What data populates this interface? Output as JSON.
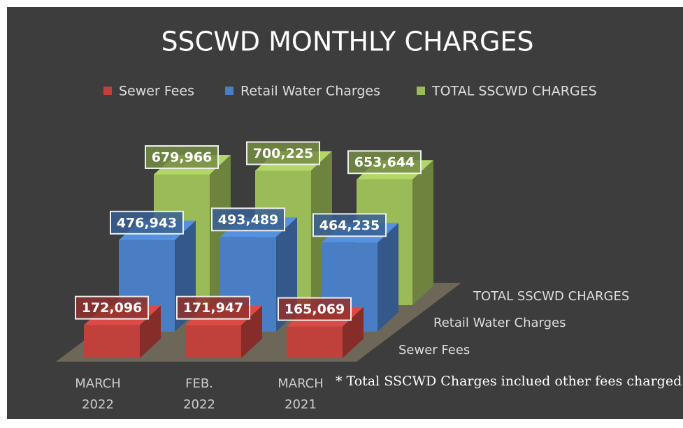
{
  "chart_data": {
    "type": "bar3d",
    "title": "SSCWD MONTHLY CHARGES",
    "categories": [
      "MARCH 2022",
      "FEB. 2022",
      "MARCH 2021"
    ],
    "series": [
      {
        "name": "Sewer Fees",
        "color": "#c0403c",
        "values": [
          172096,
          171947,
          165069
        ],
        "value_labels": [
          "172,096",
          "171,947",
          "165,069"
        ]
      },
      {
        "name": "Retail Water Charges",
        "color": "#4a7ec4",
        "values": [
          476943,
          493489,
          464235
        ],
        "value_labels": [
          "476,943",
          "493,489",
          "464,235"
        ]
      },
      {
        "name": "TOTAL SSCWD CHARGES",
        "color": "#9bbb59",
        "values": [
          679966,
          700225,
          653644
        ],
        "value_labels": [
          "679,966",
          "700,225",
          "653,644"
        ]
      }
    ],
    "footnote": "* Total SSCWD Charges inclued other fees charged",
    "legend": "top"
  }
}
